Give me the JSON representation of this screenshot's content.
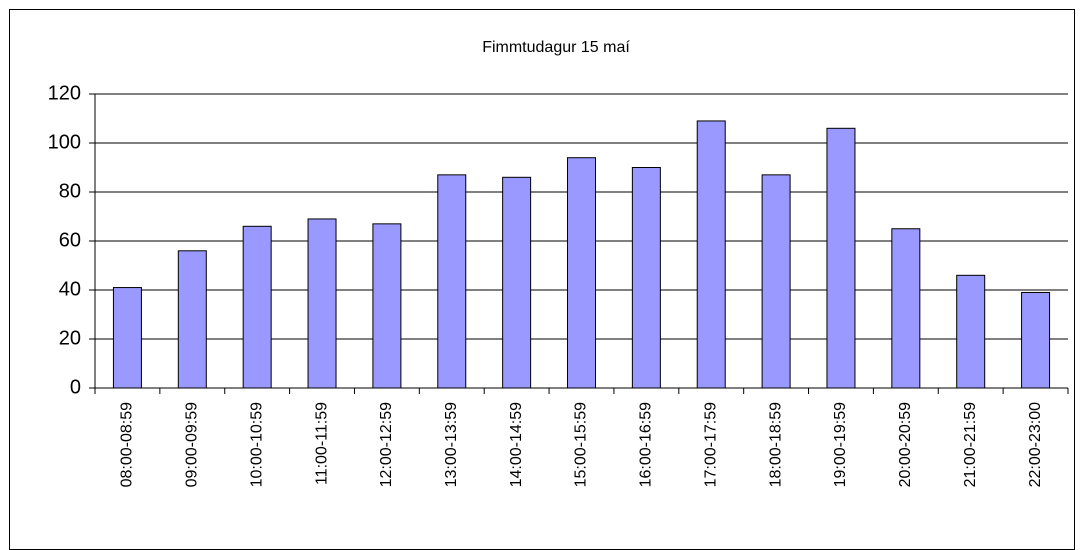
{
  "chart_data": {
    "type": "bar",
    "title": "Fimmtudagur 15 maí",
    "categories": [
      "08:00-08:59",
      "09:00-09:59",
      "10:00-10:59",
      "11:00-11:59",
      "12:00-12:59",
      "13:00-13:59",
      "14:00-14:59",
      "15:00-15:59",
      "16:00-16:59",
      "17:00-17:59",
      "18:00-18:59",
      "19:00-19:59",
      "20:00-20:59",
      "21:00-21:59",
      "22:00-23:00"
    ],
    "values": [
      41,
      56,
      66,
      69,
      67,
      87,
      86,
      94,
      90,
      109,
      87,
      106,
      65,
      46,
      39
    ],
    "color": "#9999ff",
    "ylim": [
      0,
      120
    ],
    "yticks": [
      0,
      20,
      40,
      60,
      80,
      100,
      120
    ],
    "grid": true
  }
}
